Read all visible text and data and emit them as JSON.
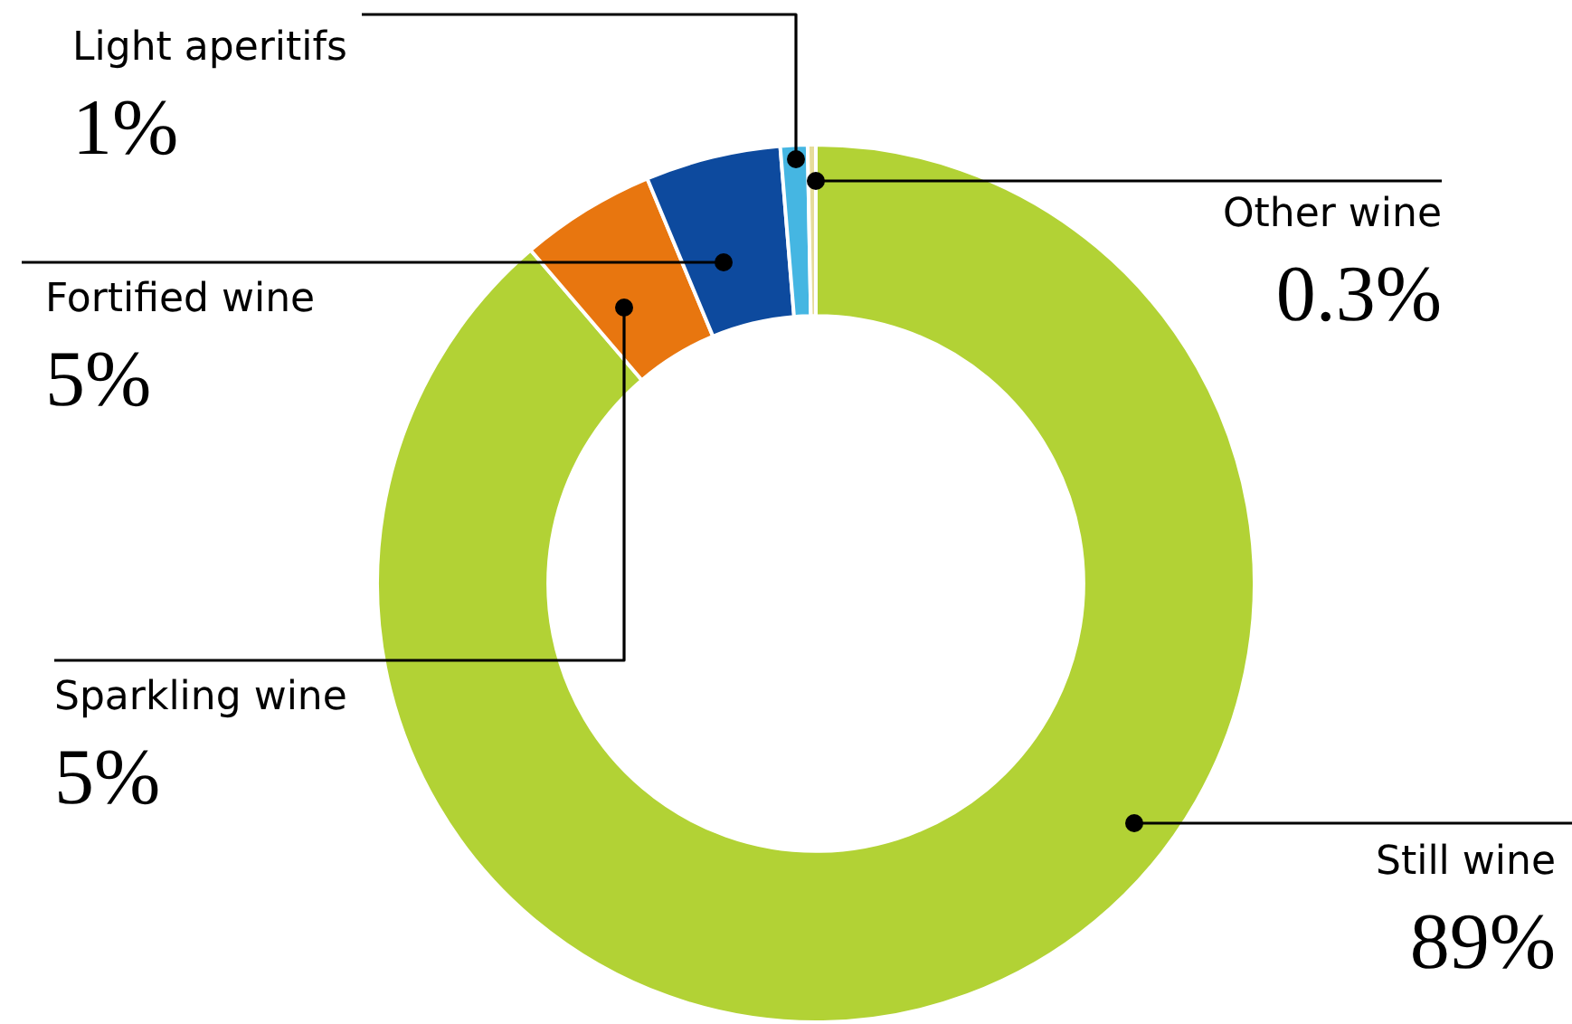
{
  "chart_data": {
    "type": "donut",
    "categories": [
      "Still wine",
      "Sparkling wine",
      "Fortified wine",
      "Light aperitifs",
      "Other wine"
    ],
    "values": [
      89,
      5,
      5,
      1,
      0.3
    ],
    "value_labels": [
      "89%",
      "5%",
      "5%",
      "1%",
      "0.3%"
    ],
    "colors": [
      "#b2d235",
      "#e8760f",
      "#0d4a9e",
      "#45b6e2",
      "#e6dc9a"
    ],
    "legend": false
  }
}
